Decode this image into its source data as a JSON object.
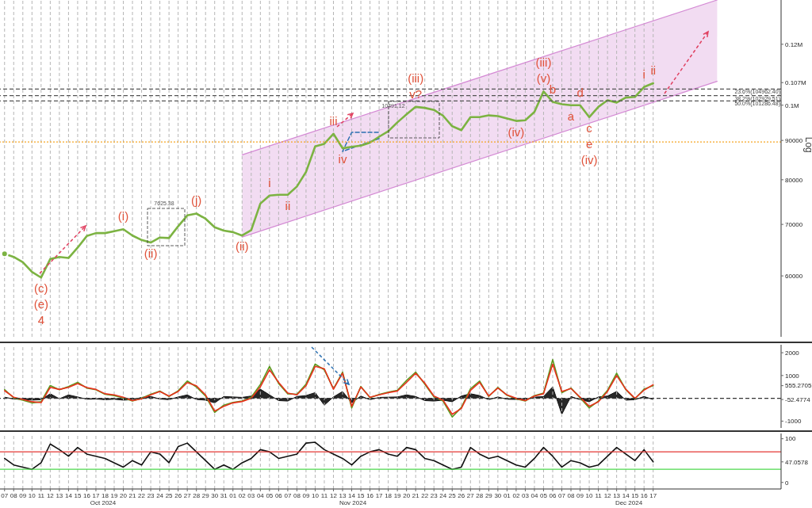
{
  "chart_data": [
    {
      "type": "line",
      "ylabel": "Log",
      "log": true,
      "ylim": [
        50000,
        137000
      ],
      "yticks": [
        60000,
        70000,
        80000,
        90000,
        {
          "value": 100000,
          "label": "0.1M"
        },
        {
          "value": 107000,
          "label": "0.107M"
        },
        {
          "value": 120000,
          "label": "0.12M"
        }
      ],
      "xlim": [
        "2024-10-06T12:00",
        "2024-12-31"
      ],
      "tick_labels": "y",
      "grid": "x",
      "xticks": [
        "2024-10-07",
        "2024-10-08",
        "2024-10-09",
        "2024-10-10",
        "2024-10-11",
        "2024-10-12",
        "2024-10-13",
        "2024-10-14",
        "2024-10-15",
        "2024-10-16",
        "2024-10-17",
        "2024-10-18",
        "2024-10-19",
        "2024-10-20",
        "2024-10-21",
        "2024-10-22",
        "2024-10-23",
        "2024-10-24",
        "2024-10-25",
        "2024-10-26",
        "2024-10-27",
        "2024-10-28",
        "2024-10-29",
        "2024-10-30",
        "2024-10-31",
        "2024-11-01",
        "2024-11-02",
        "2024-11-03",
        "2024-11-04",
        "2024-11-05",
        "2024-11-06",
        "2024-11-07",
        "2024-11-08",
        "2024-11-09",
        "2024-11-10",
        "2024-11-11",
        "2024-11-12",
        "2024-11-13",
        "2024-11-14",
        "2024-11-15",
        "2024-11-16",
        "2024-11-17",
        "2024-11-18",
        "2024-11-19",
        "2024-11-20",
        "2024-11-21",
        "2024-11-22",
        "2024-11-23",
        "2024-11-24",
        "2024-11-25",
        "2024-11-26",
        "2024-11-27",
        "2024-11-28",
        "2024-11-29",
        "2024-11-30",
        "2024-12-01",
        "2024-12-02",
        "2024-12-03",
        "2024-12-04",
        "2024-12-05",
        "2024-12-06",
        "2024-12-07",
        "2024-12-08",
        "2024-12-09",
        "2024-12-10",
        "2024-12-11",
        "2024-12-12",
        "2024-12-13",
        "2024-12-14",
        "2024-12-15",
        "2024-12-16",
        "2024-12-17"
      ],
      "x": [
        "2024-10-07",
        "2024-10-08",
        "2024-10-09",
        "2024-10-10",
        "2024-10-11",
        "2024-10-12",
        "2024-10-13",
        "2024-10-14",
        "2024-10-15",
        "2024-10-16",
        "2024-10-17",
        "2024-10-18",
        "2024-10-19",
        "2024-10-20",
        "2024-10-21",
        "2024-10-22",
        "2024-10-23",
        "2024-10-24",
        "2024-10-25",
        "2024-10-26",
        "2024-10-27",
        "2024-10-28",
        "2024-10-29",
        "2024-10-30",
        "2024-10-31",
        "2024-11-01",
        "2024-11-02",
        "2024-11-03",
        "2024-11-04",
        "2024-11-05",
        "2024-11-06",
        "2024-11-07",
        "2024-11-08",
        "2024-11-09",
        "2024-11-10",
        "2024-11-11",
        "2024-11-12",
        "2024-11-13",
        "2024-11-14",
        "2024-11-15",
        "2024-11-16",
        "2024-11-17",
        "2024-11-18",
        "2024-11-19",
        "2024-11-20",
        "2024-11-21",
        "2024-11-22",
        "2024-11-23",
        "2024-11-24",
        "2024-11-25",
        "2024-11-26",
        "2024-11-27",
        "2024-11-28",
        "2024-11-29",
        "2024-11-30",
        "2024-12-01",
        "2024-12-02",
        "2024-12-03",
        "2024-12-04",
        "2024-12-05",
        "2024-12-06",
        "2024-12-07",
        "2024-12-08",
        "2024-12-09",
        "2024-12-10",
        "2024-12-11",
        "2024-12-12",
        "2024-12-13",
        "2024-12-14",
        "2024-12-15",
        "2024-12-16",
        "2024-12-17"
      ],
      "series": [
        {
          "type": "line",
          "color": "#d48ad4",
          "x": [
            "2024-11-02",
            "2024-12-24"
          ],
          "values": [
            86200,
            137000
          ]
        },
        {
          "type": "line",
          "color": "#d48ad4",
          "x": [
            "2024-11-02",
            "2024-12-24"
          ],
          "lower": [
            67400,
            107400
          ],
          "upper": [
            86200,
            137000
          ],
          "values": [
            67400,
            107400
          ]
        },
        {
          "type": "line",
          "color": "#2a6fb0",
          "line_style": "dashed",
          "x": [
            "2024-11-17",
            "2024-11-13",
            "2024-11-14",
            "2024-11-17"
          ],
          "values": [
            90500,
            87100,
            92200,
            92200
          ]
        },
        {
          "color": "#7cb342",
          "values": [
            64100,
            63500,
            62500,
            60700,
            59700,
            63100,
            63500,
            63300,
            65300,
            67600,
            68200,
            68200,
            68600,
            69000,
            67700,
            66800,
            66300,
            67300,
            67200,
            69600,
            71900,
            72300,
            71200,
            69400,
            68700,
            68400,
            67700,
            68800,
            74500,
            76300,
            76500,
            76500,
            78400,
            81900,
            88400,
            89100,
            91800,
            87900,
            88300,
            88600,
            89400,
            91000,
            92500,
            95000,
            97300,
            99500,
            99200,
            98600,
            96900,
            93900,
            92800,
            96500,
            96500,
            97000,
            96800,
            96100,
            95400,
            95600,
            98000,
            104200,
            101000,
            100300,
            100000,
            100000,
            96500,
            99500,
            101500,
            100800,
            102300,
            102500,
            105600,
            106800
          ]
        }
      ],
      "ref_lines": [
        {
          "axis": "y",
          "value": 89600,
          "color": "#f5a623",
          "line_style": "dotted"
        },
        {
          "axis": "y",
          "value": 104962.4,
          "label": "23.6%(104962.40)",
          "color": "#555555",
          "line_style": "dashed"
        },
        {
          "axis": "y",
          "value": 102929.51,
          "label": "38.2%(102929.51)",
          "color": "#555555",
          "line_style": "dashed"
        },
        {
          "axis": "y",
          "value": 101286.48,
          "label": "50.0%(101286.48)",
          "color": "#555555",
          "line_style": "dashed"
        }
      ],
      "annotations": [
        {
          "text": "(c)",
          "x": "2024-10-11",
          "y": 59700
        },
        {
          "text": "(e)",
          "x": "2024-10-11",
          "y": 59700
        },
        {
          "text": "4",
          "x": "2024-10-11",
          "y": 59700
        },
        {
          "text": "(i)",
          "x": "2024-10-20",
          "y": 69000
        },
        {
          "text": "(ii)",
          "x": "2024-10-23",
          "y": 66300
        },
        "7625.38",
        {
          "text": "(j)",
          "x": "2024-10-28",
          "y": 72300
        },
        {
          "text": "(ii)",
          "x": "2024-11-02",
          "y": 67700
        },
        {
          "text": "i",
          "x": "2024-11-05",
          "y": 76300
        },
        {
          "text": "ii",
          "x": "2024-11-07",
          "y": 76500
        },
        {
          "text": "iii",
          "x": "2024-11-12",
          "y": 91800
        },
        {
          "text": "iv",
          "x": "2024-11-13",
          "y": 87900
        },
        "10491.12",
        {
          "text": "v?",
          "x": "2024-11-21",
          "y": 99500
        },
        {
          "text": "(iii)",
          "x": "2024-11-21",
          "y": 99500
        },
        {
          "text": "(iv)",
          "x": "2024-12-02",
          "y": 95400
        },
        {
          "text": "(v)",
          "x": "2024-12-05",
          "y": 104200
        },
        {
          "text": "(iii)",
          "x": "2024-12-05",
          "y": 104200
        },
        {
          "text": "b",
          "x": "2024-12-06",
          "y": 101000
        },
        {
          "text": "a",
          "x": "2024-12-08",
          "y": 100000
        },
        {
          "text": "d",
          "x": "2024-12-09",
          "y": 100000
        },
        {
          "text": "c",
          "x": "2024-12-10",
          "y": 96500
        },
        {
          "text": "e",
          "x": "2024-12-10",
          "y": 96500
        },
        {
          "text": "(iv)",
          "x": "2024-12-10",
          "y": 96500
        },
        {
          "text": "i",
          "x": "2024-12-16",
          "y": 105600
        },
        {
          "text": "ii",
          "x": "2024-12-17",
          "y": 106800
        }
      ]
    },
    {
      "type": "line",
      "ylim": [
        -1300,
        2350
      ],
      "yticks": [
        -1000,
        -52.4774,
        555.2705,
        1000,
        2000
      ],
      "xlim": [
        "2024-10-06T12:00",
        "2024-12-31"
      ],
      "tick_labels": "y",
      "grid": "x",
      "xticks": [
        "2024-10-07",
        "2024-10-08",
        "2024-10-09",
        "2024-10-10",
        "2024-10-11",
        "2024-10-12",
        "2024-10-13",
        "2024-10-14",
        "2024-10-15",
        "2024-10-16",
        "2024-10-17",
        "2024-10-18",
        "2024-10-19",
        "2024-10-20",
        "2024-10-21",
        "2024-10-22",
        "2024-10-23",
        "2024-10-24",
        "2024-10-25",
        "2024-10-26",
        "2024-10-27",
        "2024-10-28",
        "2024-10-29",
        "2024-10-30",
        "2024-10-31",
        "2024-11-01",
        "2024-11-02",
        "2024-11-03",
        "2024-11-04",
        "2024-11-05",
        "2024-11-06",
        "2024-11-07",
        "2024-11-08",
        "2024-11-09",
        "2024-11-10",
        "2024-11-11",
        "2024-11-12",
        "2024-11-13",
        "2024-11-14",
        "2024-11-15",
        "2024-11-16",
        "2024-11-17",
        "2024-11-18",
        "2024-11-19",
        "2024-11-20",
        "2024-11-21",
        "2024-11-22",
        "2024-11-23",
        "2024-11-24",
        "2024-11-25",
        "2024-11-26",
        "2024-11-27",
        "2024-11-28",
        "2024-11-29",
        "2024-11-30",
        "2024-12-01",
        "2024-12-02",
        "2024-12-03",
        "2024-12-04",
        "2024-12-05",
        "2024-12-06",
        "2024-12-07",
        "2024-12-08",
        "2024-12-09",
        "2024-12-10",
        "2024-12-11",
        "2024-12-12",
        "2024-12-13",
        "2024-12-14",
        "2024-12-15",
        "2024-12-16",
        "2024-12-17"
      ],
      "x": [
        "2024-10-07",
        "2024-10-08",
        "2024-10-09",
        "2024-10-10",
        "2024-10-11",
        "2024-10-12",
        "2024-10-13",
        "2024-10-14",
        "2024-10-15",
        "2024-10-16",
        "2024-10-17",
        "2024-10-18",
        "2024-10-19",
        "2024-10-20",
        "2024-10-21",
        "2024-10-22",
        "2024-10-23",
        "2024-10-24",
        "2024-10-25",
        "2024-10-26",
        "2024-10-27",
        "2024-10-28",
        "2024-10-29",
        "2024-10-30",
        "2024-10-31",
        "2024-11-01",
        "2024-11-02",
        "2024-11-03",
        "2024-11-04",
        "2024-11-05",
        "2024-11-06",
        "2024-11-07",
        "2024-11-08",
        "2024-11-09",
        "2024-11-10",
        "2024-11-11",
        "2024-11-12",
        "2024-11-13",
        "2024-11-14",
        "2024-11-15",
        "2024-11-16",
        "2024-11-17",
        "2024-11-18",
        "2024-11-19",
        "2024-11-20",
        "2024-11-21",
        "2024-11-22",
        "2024-11-23",
        "2024-11-24",
        "2024-11-25",
        "2024-11-26",
        "2024-11-27",
        "2024-11-28",
        "2024-11-29",
        "2024-11-30",
        "2024-12-01",
        "2024-12-02",
        "2024-12-03",
        "2024-12-04",
        "2024-12-05",
        "2024-12-06",
        "2024-12-07",
        "2024-12-08",
        "2024-12-09",
        "2024-12-10",
        "2024-12-11",
        "2024-12-12",
        "2024-12-13",
        "2024-12-14",
        "2024-12-15",
        "2024-12-16",
        "2024-12-17"
      ],
      "series": [
        {
          "type": "area",
          "color": "#111111",
          "values": [
            50,
            -30,
            -50,
            -80,
            -60,
            200,
            -20,
            150,
            60,
            -40,
            -30,
            -60,
            -40,
            -80,
            -60,
            40,
            80,
            -30,
            -60,
            60,
            150,
            -50,
            -80,
            -200,
            80,
            60,
            40,
            100,
            400,
            150,
            -100,
            -120,
            80,
            120,
            250,
            -300,
            60,
            300,
            -200,
            100,
            -60,
            40,
            50,
            60,
            150,
            80,
            -100,
            -120,
            -80,
            -150,
            100,
            200,
            120,
            -60,
            60,
            -40,
            -50,
            -60,
            50,
            80,
            500,
            -700,
            80,
            -60,
            -150,
            60,
            100,
            300,
            -80,
            -60,
            80,
            -52.4774
          ]
        },
        {
          "color": "#5a9a1e",
          "values": [
            380,
            20,
            -80,
            -200,
            -150,
            560,
            380,
            520,
            700,
            450,
            380,
            180,
            120,
            20,
            -120,
            0,
            180,
            320,
            80,
            330,
            760,
            500,
            100,
            -620,
            -300,
            -180,
            -120,
            50,
            600,
            1400,
            650,
            200,
            180,
            620,
            1500,
            1250,
            420,
            1150,
            -420,
            520,
            30,
            170,
            270,
            350,
            780,
            1150,
            620,
            60,
            -120,
            -820,
            -400,
            420,
            760,
            80,
            480,
            130,
            -20,
            -120,
            120,
            230,
            1700,
            250,
            450,
            20,
            -420,
            -120,
            350,
            1100,
            380,
            -20,
            400,
            555.2705
          ]
        },
        {
          "color": "#e8321e",
          "values": [
            333,
            50,
            -50,
            -150,
            -190,
            480,
            390,
            480,
            650,
            470,
            390,
            200,
            150,
            50,
            -100,
            -20,
            150,
            300,
            100,
            300,
            690,
            550,
            150,
            -556,
            -350,
            -200,
            -140,
            0,
            500,
            1250,
            700,
            230,
            150,
            550,
            1400,
            1300,
            400,
            1100,
            -350,
            500,
            50,
            150,
            250,
            320,
            700,
            1100,
            667,
            100,
            -80,
            -700,
            -444,
            350,
            700,
            100,
            450,
            150,
            0,
            -100,
            100,
            200,
            1500,
            300,
            430,
            50,
            -350,
            -150,
            300,
            1000,
            400,
            0,
            360,
            600
          ]
        }
      ],
      "ref_lines": [
        {
          "axis": "y",
          "value": 0,
          "color": "#333333",
          "line_style": "dashed"
        }
      ]
    },
    {
      "type": "line",
      "ylim": [
        -15,
        112
      ],
      "yticks": [
        0,
        47.0578,
        100
      ],
      "xlim": [
        "2024-10-06T12:00",
        "2024-12-31"
      ],
      "grid": "x",
      "xticks": [
        {
          "value": "2024-10-07",
          "label": "07"
        },
        {
          "value": "2024-10-08",
          "label": "08"
        },
        {
          "value": "2024-10-09",
          "label": "09"
        },
        {
          "value": "2024-10-10",
          "label": "10"
        },
        {
          "value": "2024-10-11",
          "label": "11"
        },
        {
          "value": "2024-10-12",
          "label": "12"
        },
        {
          "value": "2024-10-13",
          "label": "13"
        },
        {
          "value": "2024-10-14",
          "label": "14"
        },
        {
          "value": "2024-10-15",
          "label": "15"
        },
        {
          "value": "2024-10-16",
          "label": "16"
        },
        {
          "value": "2024-10-17",
          "label": "17"
        },
        {
          "value": "2024-10-18",
          "label": "18"
        },
        {
          "value": "2024-10-19",
          "label": "19"
        },
        {
          "value": "2024-10-20",
          "label": "20"
        },
        {
          "value": "2024-10-21",
          "label": "21"
        },
        {
          "value": "2024-10-22",
          "label": "22"
        },
        {
          "value": "2024-10-23",
          "label": "23"
        },
        {
          "value": "2024-10-24",
          "label": "24"
        },
        {
          "value": "2024-10-25",
          "label": "25"
        },
        {
          "value": "2024-10-26",
          "label": "26"
        },
        {
          "value": "2024-10-27",
          "label": "27"
        },
        {
          "value": "2024-10-28",
          "label": "28"
        },
        {
          "value": "2024-10-29",
          "label": "29"
        },
        {
          "value": "2024-10-30",
          "label": "30"
        },
        {
          "value": "2024-10-31",
          "label": "31"
        },
        {
          "value": "2024-11-01",
          "label": "01"
        },
        {
          "value": "2024-11-02",
          "label": "02"
        },
        {
          "value": "2024-11-03",
          "label": "03"
        },
        {
          "value": "2024-11-04",
          "label": "04"
        },
        {
          "value": "2024-11-05",
          "label": "05"
        },
        {
          "value": "2024-11-06",
          "label": "06"
        },
        {
          "value": "2024-11-07",
          "label": "07"
        },
        {
          "value": "2024-11-08",
          "label": "08"
        },
        {
          "value": "2024-11-09",
          "label": "09"
        },
        {
          "value": "2024-11-10",
          "label": "10"
        },
        {
          "value": "2024-11-11",
          "label": "11"
        },
        {
          "value": "2024-11-12",
          "label": "12"
        },
        {
          "value": "2024-11-13",
          "label": "13"
        },
        {
          "value": "2024-11-14",
          "label": "14"
        },
        {
          "value": "2024-11-15",
          "label": "15"
        },
        {
          "value": "2024-11-16",
          "label": "16"
        },
        {
          "value": "2024-11-17",
          "label": "17"
        },
        {
          "value": "2024-11-18",
          "label": "18"
        },
        {
          "value": "2024-11-19",
          "label": "19"
        },
        {
          "value": "2024-11-20",
          "label": "20"
        },
        {
          "value": "2024-11-21",
          "label": "21"
        },
        {
          "value": "2024-11-22",
          "label": "22"
        },
        {
          "value": "2024-11-23",
          "label": "23"
        },
        {
          "value": "2024-11-24",
          "label": "24"
        },
        {
          "value": "2024-11-25",
          "label": "25"
        },
        {
          "value": "2024-11-26",
          "label": "26"
        },
        {
          "value": "2024-11-27",
          "label": "27"
        },
        {
          "value": "2024-11-28",
          "label": "28"
        },
        {
          "value": "2024-11-29",
          "label": "29"
        },
        {
          "value": "2024-11-30",
          "label": "30"
        },
        {
          "value": "2024-12-01",
          "label": "01"
        },
        {
          "value": "2024-12-02",
          "label": "02"
        },
        {
          "value": "2024-12-03",
          "label": "03"
        },
        {
          "value": "2024-12-04",
          "label": "04"
        },
        {
          "value": "2024-12-05",
          "label": "05"
        },
        {
          "value": "2024-12-06",
          "label": "06"
        },
        {
          "value": "2024-12-07",
          "label": "07"
        },
        {
          "value": "2024-12-08",
          "label": "08"
        },
        {
          "value": "2024-12-09",
          "label": "09"
        },
        {
          "value": "2024-12-10",
          "label": "10"
        },
        {
          "value": "2024-12-11",
          "label": "11"
        },
        {
          "value": "2024-12-12",
          "label": "12"
        },
        {
          "value": "2024-12-13",
          "label": "13"
        },
        {
          "value": "2024-12-14",
          "label": "14"
        },
        {
          "value": "2024-12-15",
          "label": "15"
        },
        {
          "value": "2024-12-16",
          "label": "16"
        },
        {
          "value": "2024-12-17",
          "label": "17"
        }
      ],
      "x": [
        "2024-10-07",
        "2024-10-08",
        "2024-10-09",
        "2024-10-10",
        "2024-10-11",
        "2024-10-12",
        "2024-10-13",
        "2024-10-14",
        "2024-10-15",
        "2024-10-16",
        "2024-10-17",
        "2024-10-18",
        "2024-10-19",
        "2024-10-20",
        "2024-10-21",
        "2024-10-22",
        "2024-10-23",
        "2024-10-24",
        "2024-10-25",
        "2024-10-26",
        "2024-10-27",
        "2024-10-28",
        "2024-10-29",
        "2024-10-30",
        "2024-10-31",
        "2024-11-01",
        "2024-11-02",
        "2024-11-03",
        "2024-11-04",
        "2024-11-05",
        "2024-11-06",
        "2024-11-07",
        "2024-11-08",
        "2024-11-09",
        "2024-11-10",
        "2024-11-11",
        "2024-11-12",
        "2024-11-13",
        "2024-11-14",
        "2024-11-15",
        "2024-11-16",
        "2024-11-17",
        "2024-11-18",
        "2024-11-19",
        "2024-11-20",
        "2024-11-21",
        "2024-11-22",
        "2024-11-23",
        "2024-11-24",
        "2024-11-25",
        "2024-11-26",
        "2024-11-27",
        "2024-11-28",
        "2024-11-29",
        "2024-11-30",
        "2024-12-01",
        "2024-12-02",
        "2024-12-03",
        "2024-12-04",
        "2024-12-05",
        "2024-12-06",
        "2024-12-07",
        "2024-12-08",
        "2024-12-09",
        "2024-12-10",
        "2024-12-11",
        "2024-12-12",
        "2024-12-13",
        "2024-12-14",
        "2024-12-15",
        "2024-12-16",
        "2024-12-17"
      ],
      "series": [
        {
          "color": "#111111",
          "values": [
            55,
            40,
            35,
            30,
            45,
            88,
            75,
            60,
            80,
            65,
            60,
            55,
            45,
            35,
            50,
            40,
            70,
            65,
            45,
            82,
            90,
            70,
            50,
            30,
            40,
            30,
            45,
            55,
            75,
            70,
            55,
            60,
            65,
            90,
            92,
            75,
            65,
            55,
            40,
            60,
            70,
            75,
            65,
            60,
            80,
            75,
            55,
            50,
            40,
            30,
            35,
            80,
            65,
            55,
            60,
            50,
            40,
            35,
            55,
            80,
            60,
            35,
            50,
            45,
            35,
            40,
            60,
            80,
            65,
            50,
            75,
            47.0578
          ]
        }
      ],
      "ref_lines": [
        {
          "axis": "y",
          "value": 70,
          "color": "#e53935"
        },
        {
          "axis": "y",
          "value": 30,
          "color": "#4cd94c"
        }
      ],
      "annotations": [
        "Oct 2024",
        "Nov 2024",
        "Dec 2024"
      ]
    }
  ]
}
